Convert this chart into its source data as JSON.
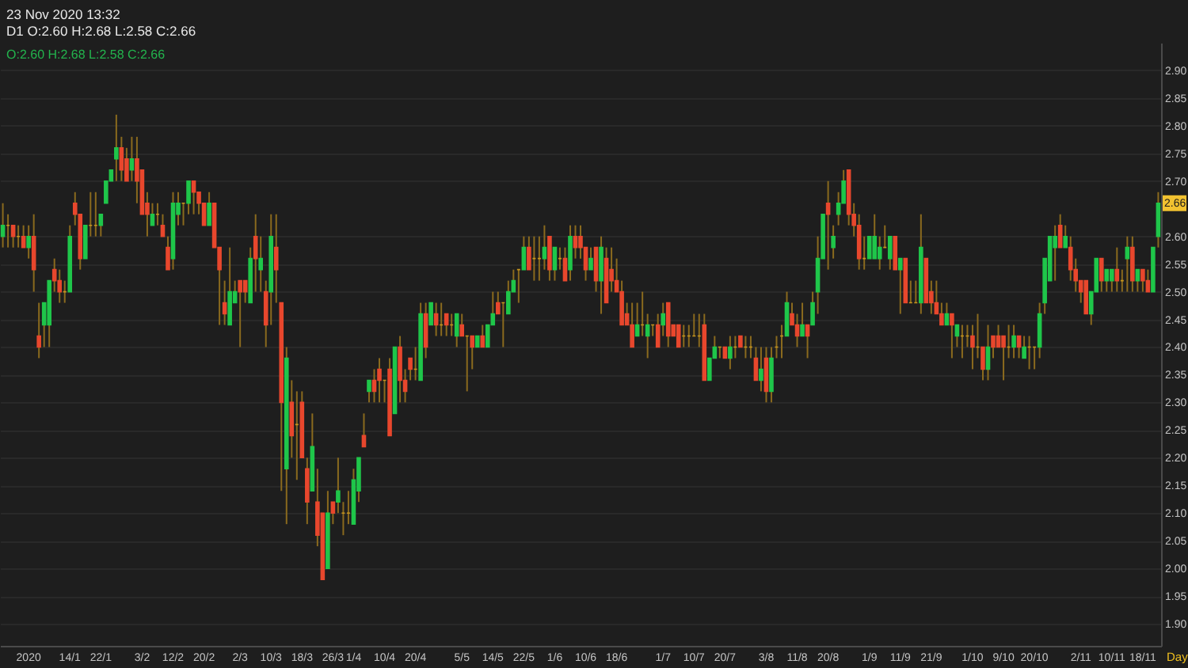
{
  "chart_data": {
    "type": "candlestick",
    "title": "23 Nov 2020 13:32",
    "subtitle": "D1 O:2.60 H:2.68 L:2.58 C:2.66",
    "xlabel": "Day",
    "categories": [
      null,
      null,
      null,
      null,
      null,
      "2020",
      null,
      null,
      null,
      null,
      null,
      null,
      null,
      "14/1",
      null,
      null,
      null,
      null,
      null,
      "22/1",
      null,
      null,
      null,
      null,
      null,
      null,
      null,
      "3/2",
      null,
      null,
      null,
      null,
      null,
      "12/2",
      null,
      null,
      null,
      null,
      null,
      "20/2",
      null,
      null,
      null,
      null,
      null,
      null,
      "2/3",
      null,
      null,
      null,
      null,
      null,
      "10/3",
      null,
      null,
      null,
      null,
      null,
      "18/3",
      null,
      null,
      null,
      null,
      null,
      "26/3",
      null,
      null,
      null,
      "1/4",
      null,
      null,
      null,
      null,
      null,
      "10/4",
      null,
      null,
      null,
      null,
      null,
      "20/4",
      null,
      null,
      null,
      null,
      null,
      null,
      null,
      null,
      "5/5",
      null,
      null,
      null,
      null,
      null,
      "14/5",
      null,
      null,
      null,
      null,
      null,
      "22/5",
      null,
      null,
      null,
      null,
      null,
      "1/6",
      null,
      null,
      null,
      null,
      null,
      "10/6",
      null,
      null,
      null,
      null,
      null,
      "18/6",
      null,
      null,
      null,
      null,
      null,
      null,
      null,
      null,
      "1/7",
      null,
      null,
      null,
      null,
      null,
      "10/7",
      null,
      null,
      null,
      null,
      null,
      "20/7",
      null,
      null,
      null,
      null,
      null,
      null,
      null,
      "3/8",
      null,
      null,
      null,
      null,
      null,
      "11/8",
      null,
      null,
      null,
      null,
      null,
      "20/8",
      null,
      null,
      null,
      null,
      null,
      null,
      null,
      "1/9",
      null,
      null,
      null,
      null,
      null,
      "11/9",
      null,
      null,
      null,
      null,
      null,
      "21/9",
      null,
      null,
      null,
      null,
      null,
      null,
      null,
      "1/10",
      null,
      null,
      null,
      null,
      null,
      "9/10",
      null,
      null,
      null,
      null,
      null,
      "20/10",
      null,
      null,
      null,
      null,
      null,
      null,
      null,
      null,
      "2/11",
      null,
      null,
      null,
      null,
      null,
      "10/11",
      null,
      null,
      null,
      null,
      null,
      "18/11",
      null,
      null,
      null
    ],
    "ohlc": [
      [
        2.6,
        2.66,
        2.58,
        2.62
      ],
      [
        2.62,
        2.64,
        2.58,
        2.62
      ],
      [
        2.62,
        2.62,
        2.58,
        2.6
      ],
      [
        2.6,
        2.62,
        2.58,
        2.6
      ],
      [
        2.6,
        2.62,
        2.58,
        2.58
      ],
      [
        2.58,
        2.62,
        2.56,
        2.6
      ],
      [
        2.6,
        2.64,
        2.5,
        2.54
      ],
      [
        2.42,
        2.48,
        2.38,
        2.4
      ],
      [
        2.44,
        2.48,
        2.4,
        2.48
      ],
      [
        2.44,
        2.52,
        2.4,
        2.52
      ],
      [
        2.54,
        2.56,
        2.5,
        2.52
      ],
      [
        2.52,
        2.54,
        2.48,
        2.5
      ],
      [
        2.5,
        2.52,
        2.48,
        2.5
      ],
      [
        2.5,
        2.62,
        2.5,
        2.6
      ],
      [
        2.66,
        2.68,
        2.62,
        2.64
      ],
      [
        2.64,
        2.64,
        2.54,
        2.56
      ],
      [
        2.56,
        2.62,
        2.56,
        2.62
      ],
      [
        2.62,
        2.68,
        2.6,
        2.62
      ],
      [
        2.62,
        2.68,
        2.6,
        2.62
      ],
      [
        2.62,
        2.64,
        2.6,
        2.64
      ],
      [
        2.66,
        2.7,
        2.66,
        2.7
      ],
      [
        2.7,
        2.72,
        2.7,
        2.72
      ],
      [
        2.74,
        2.82,
        2.7,
        2.76
      ],
      [
        2.76,
        2.78,
        2.7,
        2.72
      ],
      [
        2.74,
        2.76,
        2.7,
        2.7
      ],
      [
        2.72,
        2.78,
        2.7,
        2.74
      ],
      [
        2.74,
        2.78,
        2.66,
        2.7
      ],
      [
        2.72,
        2.72,
        2.64,
        2.64
      ],
      [
        2.66,
        2.68,
        2.6,
        2.64
      ],
      [
        2.62,
        2.66,
        2.62,
        2.64
      ],
      [
        2.64,
        2.66,
        2.62,
        2.64
      ],
      [
        2.62,
        2.64,
        2.6,
        2.6
      ],
      [
        2.58,
        2.6,
        2.54,
        2.54
      ],
      [
        2.56,
        2.68,
        2.54,
        2.66
      ],
      [
        2.64,
        2.68,
        2.62,
        2.66
      ],
      [
        2.66,
        2.66,
        2.62,
        2.66
      ],
      [
        2.66,
        2.7,
        2.64,
        2.7
      ],
      [
        2.7,
        2.7,
        2.64,
        2.68
      ],
      [
        2.68,
        2.68,
        2.64,
        2.66
      ],
      [
        2.66,
        2.66,
        2.62,
        2.62
      ],
      [
        2.62,
        2.68,
        2.62,
        2.66
      ],
      [
        2.66,
        2.66,
        2.58,
        2.58
      ],
      [
        2.58,
        2.58,
        2.44,
        2.54
      ],
      [
        2.48,
        2.52,
        2.44,
        2.46
      ],
      [
        2.44,
        2.58,
        2.44,
        2.5
      ],
      [
        2.48,
        2.52,
        2.48,
        2.5
      ],
      [
        2.52,
        2.52,
        2.4,
        2.5
      ],
      [
        2.52,
        2.52,
        2.48,
        2.5
      ],
      [
        2.48,
        2.58,
        2.48,
        2.56
      ],
      [
        2.6,
        2.64,
        2.5,
        2.56
      ],
      [
        2.54,
        2.6,
        2.5,
        2.56
      ],
      [
        2.5,
        2.52,
        2.4,
        2.44
      ],
      [
        2.5,
        2.64,
        2.44,
        2.6
      ],
      [
        2.58,
        2.64,
        2.48,
        2.54
      ],
      [
        2.48,
        2.48,
        2.14,
        2.3
      ],
      [
        2.18,
        2.4,
        2.08,
        2.38
      ],
      [
        2.3,
        2.34,
        2.2,
        2.24
      ],
      [
        2.26,
        2.32,
        2.16,
        2.26
      ],
      [
        2.3,
        2.32,
        2.2,
        2.2
      ],
      [
        2.18,
        2.2,
        2.08,
        2.12
      ],
      [
        2.14,
        2.28,
        2.14,
        2.22
      ],
      [
        2.12,
        2.18,
        2.04,
        2.06
      ],
      [
        2.1,
        2.1,
        1.98,
        1.98
      ],
      [
        2.0,
        2.14,
        2.0,
        2.1
      ],
      [
        2.12,
        2.12,
        2.08,
        2.1
      ],
      [
        2.12,
        2.2,
        2.1,
        2.14
      ],
      [
        2.1,
        2.12,
        2.06,
        2.1
      ],
      [
        2.1,
        2.14,
        2.08,
        2.1
      ],
      [
        2.08,
        2.18,
        2.08,
        2.16
      ],
      [
        2.14,
        2.2,
        2.12,
        2.2
      ],
      [
        2.24,
        2.28,
        2.22,
        2.22
      ],
      [
        2.32,
        2.34,
        2.3,
        2.34
      ],
      [
        2.34,
        2.36,
        2.3,
        2.32
      ],
      [
        2.36,
        2.38,
        2.3,
        2.34
      ],
      [
        2.34,
        2.34,
        2.3,
        2.34
      ],
      [
        2.36,
        2.38,
        2.24,
        2.24
      ],
      [
        2.28,
        2.4,
        2.28,
        2.4
      ],
      [
        2.4,
        2.42,
        2.3,
        2.34
      ],
      [
        2.34,
        2.36,
        2.3,
        2.32
      ],
      [
        2.38,
        2.38,
        2.34,
        2.36
      ],
      [
        2.36,
        2.4,
        2.34,
        2.36
      ],
      [
        2.34,
        2.48,
        2.34,
        2.46
      ],
      [
        2.46,
        2.48,
        2.38,
        2.4
      ],
      [
        2.44,
        2.48,
        2.44,
        2.48
      ],
      [
        2.46,
        2.48,
        2.42,
        2.44
      ],
      [
        2.44,
        2.48,
        2.42,
        2.44
      ],
      [
        2.46,
        2.46,
        2.42,
        2.44
      ],
      [
        2.44,
        2.46,
        2.42,
        2.44
      ],
      [
        2.42,
        2.46,
        2.4,
        2.46
      ],
      [
        2.44,
        2.46,
        2.42,
        2.42
      ],
      [
        2.42,
        2.42,
        2.32,
        2.42
      ],
      [
        2.42,
        2.42,
        2.36,
        2.4
      ],
      [
        2.4,
        2.42,
        2.4,
        2.42
      ],
      [
        2.42,
        2.44,
        2.4,
        2.4
      ],
      [
        2.4,
        2.44,
        2.4,
        2.44
      ],
      [
        2.44,
        2.5,
        2.44,
        2.46
      ],
      [
        2.48,
        2.5,
        2.46,
        2.46
      ],
      [
        2.48,
        2.48,
        2.4,
        2.48
      ],
      [
        2.46,
        2.52,
        2.46,
        2.5
      ],
      [
        2.5,
        2.54,
        2.5,
        2.52
      ],
      [
        2.54,
        2.54,
        2.48,
        2.54
      ],
      [
        2.54,
        2.6,
        2.54,
        2.58
      ],
      [
        2.58,
        2.6,
        2.54,
        2.54
      ],
      [
        2.56,
        2.6,
        2.52,
        2.56
      ],
      [
        2.56,
        2.6,
        2.52,
        2.56
      ],
      [
        2.56,
        2.62,
        2.54,
        2.58
      ],
      [
        2.6,
        2.6,
        2.52,
        2.54
      ],
      [
        2.54,
        2.58,
        2.52,
        2.58
      ],
      [
        2.56,
        2.58,
        2.54,
        2.56
      ],
      [
        2.56,
        2.58,
        2.52,
        2.52
      ],
      [
        2.54,
        2.62,
        2.52,
        2.6
      ],
      [
        2.6,
        2.62,
        2.56,
        2.58
      ],
      [
        2.6,
        2.62,
        2.56,
        2.58
      ],
      [
        2.58,
        2.58,
        2.52,
        2.54
      ],
      [
        2.54,
        2.58,
        2.54,
        2.56
      ],
      [
        2.58,
        2.58,
        2.5,
        2.52
      ],
      [
        2.52,
        2.6,
        2.46,
        2.58
      ],
      [
        2.56,
        2.58,
        2.48,
        2.48
      ],
      [
        2.54,
        2.58,
        2.5,
        2.52
      ],
      [
        2.52,
        2.56,
        2.5,
        2.5
      ],
      [
        2.5,
        2.52,
        2.44,
        2.44
      ],
      [
        2.46,
        2.48,
        2.44,
        2.44
      ],
      [
        2.44,
        2.48,
        2.4,
        2.4
      ],
      [
        2.42,
        2.48,
        2.42,
        2.44
      ],
      [
        2.44,
        2.5,
        2.42,
        2.44
      ],
      [
        2.42,
        2.46,
        2.38,
        2.44
      ],
      [
        2.44,
        2.44,
        2.42,
        2.44
      ],
      [
        2.44,
        2.46,
        2.4,
        2.4
      ],
      [
        2.44,
        2.48,
        2.42,
        2.46
      ],
      [
        2.48,
        2.48,
        2.4,
        2.42
      ],
      [
        2.44,
        2.44,
        2.42,
        2.42
      ],
      [
        2.44,
        2.44,
        2.4,
        2.4
      ],
      [
        2.42,
        2.44,
        2.4,
        2.42
      ],
      [
        2.42,
        2.44,
        2.4,
        2.42
      ],
      [
        2.42,
        2.46,
        2.42,
        2.42
      ],
      [
        2.42,
        2.46,
        2.4,
        2.42
      ],
      [
        2.44,
        2.46,
        2.34,
        2.34
      ],
      [
        2.34,
        2.38,
        2.34,
        2.38
      ],
      [
        2.38,
        2.42,
        2.38,
        2.4
      ],
      [
        2.4,
        2.4,
        2.38,
        2.4
      ],
      [
        2.4,
        2.4,
        2.38,
        2.38
      ],
      [
        2.38,
        2.42,
        2.36,
        2.4
      ],
      [
        2.4,
        2.42,
        2.38,
        2.4
      ],
      [
        2.42,
        2.42,
        2.4,
        2.4
      ],
      [
        2.4,
        2.42,
        2.38,
        2.4
      ],
      [
        2.4,
        2.42,
        2.38,
        2.4
      ],
      [
        2.38,
        2.4,
        2.34,
        2.34
      ],
      [
        2.34,
        2.4,
        2.32,
        2.36
      ],
      [
        2.38,
        2.4,
        2.3,
        2.32
      ],
      [
        2.32,
        2.4,
        2.3,
        2.38
      ],
      [
        2.4,
        2.42,
        2.38,
        2.4
      ],
      [
        2.42,
        2.44,
        2.38,
        2.42
      ],
      [
        2.42,
        2.5,
        2.42,
        2.48
      ],
      [
        2.46,
        2.48,
        2.44,
        2.44
      ],
      [
        2.44,
        2.46,
        2.4,
        2.42
      ],
      [
        2.42,
        2.48,
        2.42,
        2.44
      ],
      [
        2.44,
        2.44,
        2.38,
        2.42
      ],
      [
        2.44,
        2.5,
        2.44,
        2.48
      ],
      [
        2.5,
        2.6,
        2.46,
        2.56
      ],
      [
        2.56,
        2.64,
        2.56,
        2.64
      ],
      [
        2.66,
        2.7,
        2.54,
        2.64
      ],
      [
        2.58,
        2.62,
        2.56,
        2.6
      ],
      [
        2.64,
        2.68,
        2.62,
        2.66
      ],
      [
        2.66,
        2.72,
        2.66,
        2.7
      ],
      [
        2.72,
        2.72,
        2.62,
        2.64
      ],
      [
        2.64,
        2.66,
        2.6,
        2.62
      ],
      [
        2.62,
        2.64,
        2.54,
        2.56
      ],
      [
        2.56,
        2.6,
        2.54,
        2.56
      ],
      [
        2.56,
        2.6,
        2.56,
        2.6
      ],
      [
        2.56,
        2.64,
        2.56,
        2.6
      ],
      [
        2.56,
        2.6,
        2.54,
        2.58
      ],
      [
        2.58,
        2.62,
        2.58,
        2.58
      ],
      [
        2.56,
        2.6,
        2.54,
        2.6
      ],
      [
        2.6,
        2.6,
        2.54,
        2.54
      ],
      [
        2.54,
        2.56,
        2.46,
        2.56
      ],
      [
        2.56,
        2.56,
        2.48,
        2.48
      ],
      [
        2.48,
        2.52,
        2.48,
        2.48
      ],
      [
        2.48,
        2.52,
        2.48,
        2.48
      ],
      [
        2.48,
        2.64,
        2.46,
        2.58
      ],
      [
        2.56,
        2.56,
        2.48,
        2.48
      ],
      [
        2.5,
        2.52,
        2.46,
        2.48
      ],
      [
        2.48,
        2.52,
        2.46,
        2.46
      ],
      [
        2.46,
        2.48,
        2.44,
        2.44
      ],
      [
        2.44,
        2.48,
        2.44,
        2.46
      ],
      [
        2.46,
        2.46,
        2.38,
        2.44
      ],
      [
        2.42,
        2.44,
        2.4,
        2.44
      ],
      [
        2.42,
        2.44,
        2.38,
        2.42
      ],
      [
        2.42,
        2.44,
        2.4,
        2.42
      ],
      [
        2.42,
        2.44,
        2.36,
        2.4
      ],
      [
        2.4,
        2.46,
        2.38,
        2.4
      ],
      [
        2.4,
        2.4,
        2.34,
        2.36
      ],
      [
        2.36,
        2.44,
        2.34,
        2.4
      ],
      [
        2.42,
        2.42,
        2.38,
        2.4
      ],
      [
        2.42,
        2.44,
        2.4,
        2.4
      ],
      [
        2.42,
        2.42,
        2.34,
        2.4
      ],
      [
        2.4,
        2.44,
        2.38,
        2.4
      ],
      [
        2.4,
        2.44,
        2.38,
        2.42
      ],
      [
        2.42,
        2.42,
        2.38,
        2.4
      ],
      [
        2.38,
        2.42,
        2.38,
        2.4
      ],
      [
        2.4,
        2.42,
        2.36,
        2.4
      ],
      [
        2.4,
        2.4,
        2.36,
        2.4
      ],
      [
        2.4,
        2.48,
        2.38,
        2.46
      ],
      [
        2.48,
        2.56,
        2.46,
        2.56
      ],
      [
        2.52,
        2.6,
        2.52,
        2.6
      ],
      [
        2.58,
        2.62,
        2.52,
        2.6
      ],
      [
        2.62,
        2.64,
        2.58,
        2.58
      ],
      [
        2.58,
        2.62,
        2.58,
        2.6
      ],
      [
        2.58,
        2.6,
        2.52,
        2.54
      ],
      [
        2.54,
        2.56,
        2.5,
        2.52
      ],
      [
        2.52,
        2.52,
        2.48,
        2.5
      ],
      [
        2.52,
        2.52,
        2.46,
        2.46
      ],
      [
        2.46,
        2.5,
        2.44,
        2.5
      ],
      [
        2.5,
        2.56,
        2.5,
        2.56
      ],
      [
        2.56,
        2.56,
        2.5,
        2.52
      ],
      [
        2.52,
        2.54,
        2.5,
        2.54
      ],
      [
        2.52,
        2.54,
        2.5,
        2.54
      ],
      [
        2.54,
        2.58,
        2.5,
        2.52
      ],
      [
        2.52,
        2.54,
        2.5,
        2.52
      ],
      [
        2.56,
        2.6,
        2.5,
        2.58
      ],
      [
        2.58,
        2.6,
        2.5,
        2.52
      ],
      [
        2.52,
        2.54,
        2.5,
        2.54
      ],
      [
        2.54,
        2.54,
        2.5,
        2.52
      ],
      [
        2.52,
        2.54,
        2.5,
        2.5
      ],
      [
        2.5,
        2.58,
        2.5,
        2.58
      ],
      [
        2.6,
        2.68,
        2.58,
        2.66
      ]
    ],
    "colors": [
      "#1fc64a",
      "#c8961e",
      "#e8472d",
      "#c8961e",
      "#e8472d",
      "#1fc64a",
      "#e8472d",
      "#e8472d",
      "#1fc64a",
      "#1fc64a",
      "#e8472d",
      "#e8472d",
      "#c8961e",
      "#1fc64a",
      "#e8472d",
      "#e8472d",
      "#1fc64a",
      "#c8961e",
      "#c8961e",
      "#1fc64a",
      "#1fc64a",
      "#1fc64a",
      "#1fc64a",
      "#e8472d",
      "#e8472d",
      "#1fc64a",
      "#e8472d",
      "#e8472d",
      "#e8472d",
      "#1fc64a",
      "#c8961e",
      "#e8472d",
      "#e8472d",
      "#1fc64a",
      "#1fc64a",
      "#c8961e",
      "#1fc64a",
      "#e8472d",
      "#e8472d",
      "#e8472d",
      "#1fc64a",
      "#e8472d",
      "#e8472d",
      "#e8472d",
      "#1fc64a",
      "#1fc64a",
      "#e8472d",
      "#e8472d",
      "#1fc64a",
      "#e8472d",
      "#1fc64a",
      "#e8472d",
      "#1fc64a",
      "#e8472d",
      "#e8472d",
      "#1fc64a",
      "#e8472d",
      "#c8961e",
      "#e8472d",
      "#e8472d",
      "#1fc64a",
      "#e8472d",
      "#e8472d",
      "#1fc64a",
      "#e8472d",
      "#1fc64a",
      "#c8961e",
      "#c8961e",
      "#1fc64a",
      "#1fc64a",
      "#e8472d",
      "#1fc64a",
      "#e8472d",
      "#e8472d",
      "#c8961e",
      "#e8472d",
      "#1fc64a",
      "#e8472d",
      "#e8472d",
      "#e8472d",
      "#c8961e",
      "#1fc64a",
      "#e8472d",
      "#1fc64a",
      "#e8472d",
      "#c8961e",
      "#e8472d",
      "#c8961e",
      "#1fc64a",
      "#e8472d",
      "#c8961e",
      "#e8472d",
      "#1fc64a",
      "#e8472d",
      "#1fc64a",
      "#1fc64a",
      "#e8472d",
      "#c8961e",
      "#1fc64a",
      "#1fc64a",
      "#c8961e",
      "#1fc64a",
      "#e8472d",
      "#c8961e",
      "#c8961e",
      "#1fc64a",
      "#e8472d",
      "#1fc64a",
      "#c8961e",
      "#e8472d",
      "#1fc64a",
      "#e8472d",
      "#e8472d",
      "#e8472d",
      "#1fc64a",
      "#e8472d",
      "#1fc64a",
      "#e8472d",
      "#e8472d",
      "#e8472d",
      "#e8472d",
      "#e8472d",
      "#e8472d",
      "#1fc64a",
      "#c8961e",
      "#1fc64a",
      "#c8961e",
      "#e8472d",
      "#1fc64a",
      "#e8472d",
      "#e8472d",
      "#e8472d",
      "#c8961e",
      "#c8961e",
      "#c8961e",
      "#c8961e",
      "#e8472d",
      "#1fc64a",
      "#1fc64a",
      "#c8961e",
      "#e8472d",
      "#1fc64a",
      "#c8961e",
      "#e8472d",
      "#c8961e",
      "#c8961e",
      "#e8472d",
      "#1fc64a",
      "#e8472d",
      "#1fc64a",
      "#c8961e",
      "#c8961e",
      "#1fc64a",
      "#e8472d",
      "#e8472d",
      "#1fc64a",
      "#e8472d",
      "#1fc64a",
      "#1fc64a",
      "#1fc64a",
      "#e8472d",
      "#1fc64a",
      "#1fc64a",
      "#1fc64a",
      "#e8472d",
      "#e8472d",
      "#e8472d",
      "#c8961e",
      "#1fc64a",
      "#1fc64a",
      "#1fc64a",
      "#c8961e",
      "#1fc64a",
      "#e8472d",
      "#1fc64a",
      "#e8472d",
      "#c8961e",
      "#c8961e",
      "#1fc64a",
      "#e8472d",
      "#e8472d",
      "#e8472d",
      "#e8472d",
      "#1fc64a",
      "#e8472d",
      "#1fc64a",
      "#c8961e",
      "#c8961e",
      "#e8472d",
      "#c8961e",
      "#e8472d",
      "#1fc64a",
      "#e8472d",
      "#e8472d",
      "#e8472d",
      "#c8961e",
      "#1fc64a",
      "#e8472d",
      "#1fc64a",
      "#c8961e",
      "#c8961e",
      "#1fc64a",
      "#1fc64a",
      "#1fc64a",
      "#1fc64a",
      "#e8472d",
      "#1fc64a",
      "#e8472d",
      "#e8472d",
      "#e8472d",
      "#e8472d",
      "#1fc64a",
      "#1fc64a",
      "#e8472d",
      "#1fc64a",
      "#1fc64a",
      "#e8472d",
      "#c8961e",
      "#1fc64a",
      "#e8472d",
      "#1fc64a",
      "#e8472d",
      "#e8472d",
      "#1fc64a",
      "#1fc64a"
    ],
    "color": "#8a6a1e",
    "ylim": [
      1.86,
      2.95
    ],
    "yticks": [
      {
        "value": 1.9,
        "label": "1.90"
      },
      {
        "value": 1.95,
        "label": "1.95"
      },
      {
        "value": 2,
        "label": "2.00"
      },
      {
        "value": 2.05,
        "label": "2.05"
      },
      {
        "value": 2.1,
        "label": "2.10"
      },
      {
        "value": 2.15,
        "label": "2.15"
      },
      {
        "value": 2.2,
        "label": "2.20"
      },
      {
        "value": 2.25,
        "label": "2.25"
      },
      {
        "value": 2.3,
        "label": "2.30"
      },
      {
        "value": 2.35,
        "label": "2.35"
      },
      {
        "value": 2.4,
        "label": "2.40"
      },
      {
        "value": 2.45,
        "label": "2.45"
      },
      {
        "value": 2.5,
        "label": "2.50"
      },
      {
        "value": 2.55,
        "label": "2.55"
      },
      {
        "value": 2.6,
        "label": "2.60"
      },
      {
        "value": 2.7,
        "label": "2.70"
      },
      {
        "value": 2.75,
        "label": "2.75"
      },
      {
        "value": 2.8,
        "label": "2.80"
      },
      {
        "value": 2.85,
        "label": "2.85"
      },
      {
        "value": 2.9,
        "label": "2.90"
      }
    ],
    "grid": "y",
    "annotations": [
      "O:2.60 H:2.68 L:2.58 C:2.66",
      {
        "text": "2.66",
        "y": 2.66
      }
    ]
  }
}
